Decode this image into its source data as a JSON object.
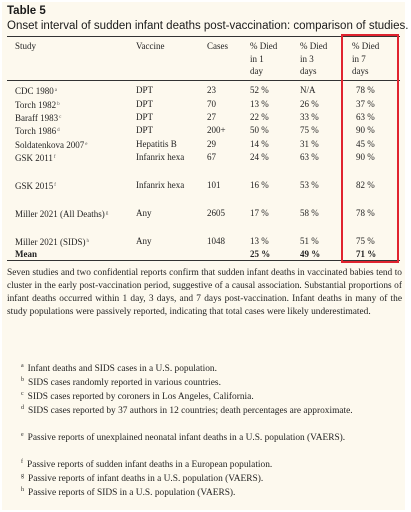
{
  "title": "Table 5",
  "caption": "Onset interval of sudden infant deaths post-vaccination: comparison of studies.",
  "headers": {
    "study": "Study",
    "vaccine": "Vaccine",
    "cases": "Cases",
    "d1": [
      "% Died",
      "in 1",
      "day"
    ],
    "d3": [
      "% Died",
      "in 3",
      "days"
    ],
    "d7": [
      "% Died",
      "in 7",
      "days"
    ]
  },
  "rows": [
    {
      "study": "CDC 1980",
      "sup": "a",
      "vaccine": "DPT",
      "cases": "23",
      "d1": "52 %",
      "d3": "N/A",
      "d7": "78 %"
    },
    {
      "study": "Torch 1982",
      "sup": "b",
      "vaccine": "DPT",
      "cases": "70",
      "d1": "13 %",
      "d3": "26 %",
      "d7": "37 %"
    },
    {
      "study": "Baraff 1983",
      "sup": "c",
      "vaccine": "DPT",
      "cases": "27",
      "d1": "22 %",
      "d3": "33 %",
      "d7": "63 %"
    },
    {
      "study": "Torch 1986",
      "sup": "d",
      "vaccine": "DPT",
      "cases": "200+",
      "d1": "50 %",
      "d3": "75 %",
      "d7": "90 %"
    },
    {
      "study": "Soldatenkova 2007",
      "sup": "e",
      "vaccine": "Hepatitis B",
      "cases": "29",
      "d1": "14 %",
      "d3": "31 %",
      "d7": "45 %"
    },
    {
      "study": "GSK 2011",
      "sup": "f",
      "vaccine": "Infanrix hexa",
      "cases": "67",
      "d1": "24 %",
      "d3": "63 %",
      "d7": "90 %"
    },
    {
      "study": "GSK 2015",
      "sup": "f",
      "vaccine": "Infanrix hexa",
      "cases": "101",
      "d1": "16 %",
      "d3": "53 %",
      "d7": "82 %"
    },
    {
      "study": "Miller 2021 (All Deaths)",
      "sup": "g",
      "vaccine": "Any",
      "cases": "2605",
      "d1": "17 %",
      "d3": "58 %",
      "d7": "78 %"
    },
    {
      "study": "Miller 2021 (SIDS)",
      "sup": "h",
      "vaccine": "Any",
      "cases": "1048",
      "d1": "13 %",
      "d3": "51 %",
      "d7": "75 %"
    }
  ],
  "mean": {
    "label": "Mean",
    "d1": "25 %",
    "d3": "49 %",
    "d7": "71 %"
  },
  "summary": "Seven studies and two confidential reports confirm that sudden infant deaths in vaccinated babies tend to cluster in the early post-vaccination period, suggestive of a causal association. Substantial proportions of infant deaths occurred within 1 day, 3 days, and 7 days post-vaccination. Infant deaths in many of the study populations were passively reported, indicating that total cases were likely underestimated.",
  "footnotes": [
    {
      "mark": "a",
      "text": "Infant deaths and SIDS cases in a U.S. population."
    },
    {
      "mark": "b",
      "text": "SIDS cases randomly reported in various countries."
    },
    {
      "mark": "c",
      "text": "SIDS cases reported by coroners in Los Angeles, California."
    },
    {
      "mark": "d",
      "text": "SIDS cases reported by 37 authors in 12 countries; death percentages are approximate."
    },
    {
      "mark": "e",
      "text": "Passive reports of unexplained neonatal infant deaths in a U.S. population (VAERS)."
    },
    {
      "mark": "f",
      "text": "Passive reports of sudden infant deaths in a European population."
    },
    {
      "mark": "g",
      "text": "Passive reports of infant deaths in a U.S. population (VAERS)."
    },
    {
      "mark": "h",
      "text": "Passive reports of SIDS in a U.S. population (VAERS)."
    }
  ],
  "colors": {
    "highlight": "#e0242f",
    "background": "#fdf9ee"
  }
}
